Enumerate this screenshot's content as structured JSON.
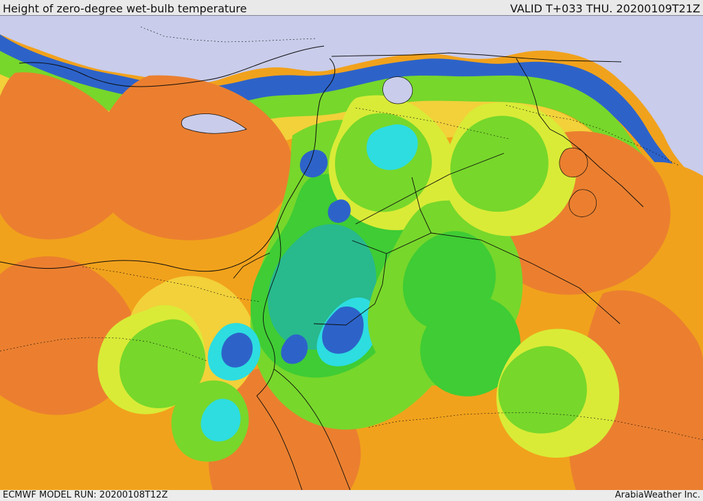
{
  "header": {
    "title": "Height of zero-degree wet-bulb temperature",
    "valid": "VALID T+033 THU. 20200109T21Z"
  },
  "footer": {
    "model_run": "ECMWF MODEL RUN: 20200108T12Z",
    "credit": "ArabiaWeather Inc."
  },
  "colors": {
    "orange": "#f1a21c",
    "deep_orange": "#eb7f2f",
    "yellow": "#f2d13a",
    "lime": "#d9eb37",
    "green": "#77d72b",
    "bright_green": "#3fcc34",
    "teal": "#28b98d",
    "cyan": "#2ddde0",
    "blue": "#2d63c9",
    "lavender": "#c9ccea",
    "border": "#0b0b0b"
  }
}
